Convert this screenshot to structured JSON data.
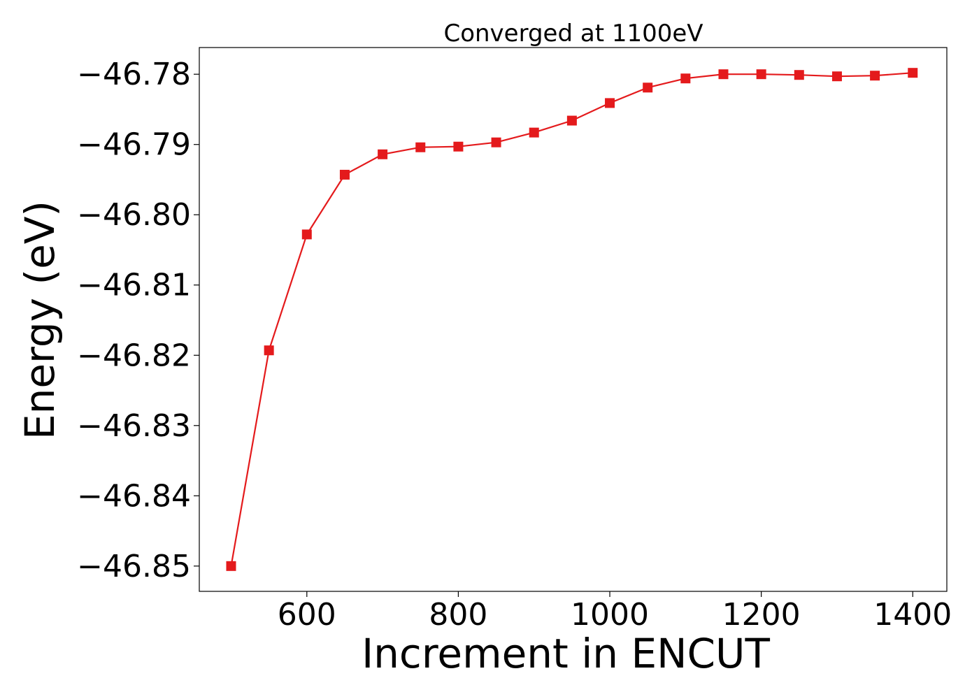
{
  "chart_data": {
    "type": "line",
    "title": "Converged at 1100eV",
    "xlabel": "Increment in ENCUT",
    "ylabel": "Energy (eV)",
    "xlim": [
      458,
      1445
    ],
    "ylim": [
      -46.8536,
      -46.7762
    ],
    "xticks": [
      600,
      800,
      1000,
      1200,
      1400
    ],
    "yticks": [
      -46.78,
      -46.79,
      -46.8,
      -46.81,
      -46.82,
      -46.83,
      -46.84,
      -46.85
    ],
    "ytick_labels": [
      "−46.78",
      "−46.79",
      "−46.80",
      "−46.81",
      "−46.82",
      "−46.83",
      "−46.84",
      "−46.85"
    ],
    "xtick_labels": [
      "600",
      "800",
      "1000",
      "1200",
      "1400"
    ],
    "grid": false,
    "legend": "none",
    "series": [
      {
        "color": "#e41a1c",
        "marker": "square",
        "x": [
          500,
          550,
          600,
          650,
          700,
          750,
          800,
          850,
          900,
          950,
          1000,
          1050,
          1100,
          1150,
          1200,
          1250,
          1300,
          1350,
          1400
        ],
        "y": [
          -46.85,
          -46.8193,
          -46.8028,
          -46.7943,
          -46.7914,
          -46.7904,
          -46.7903,
          -46.7897,
          -46.7883,
          -46.7866,
          -46.7841,
          -46.7819,
          -46.7806,
          -46.78,
          -46.78,
          -46.7801,
          -46.7803,
          -46.7802,
          -46.7798
        ]
      }
    ]
  }
}
